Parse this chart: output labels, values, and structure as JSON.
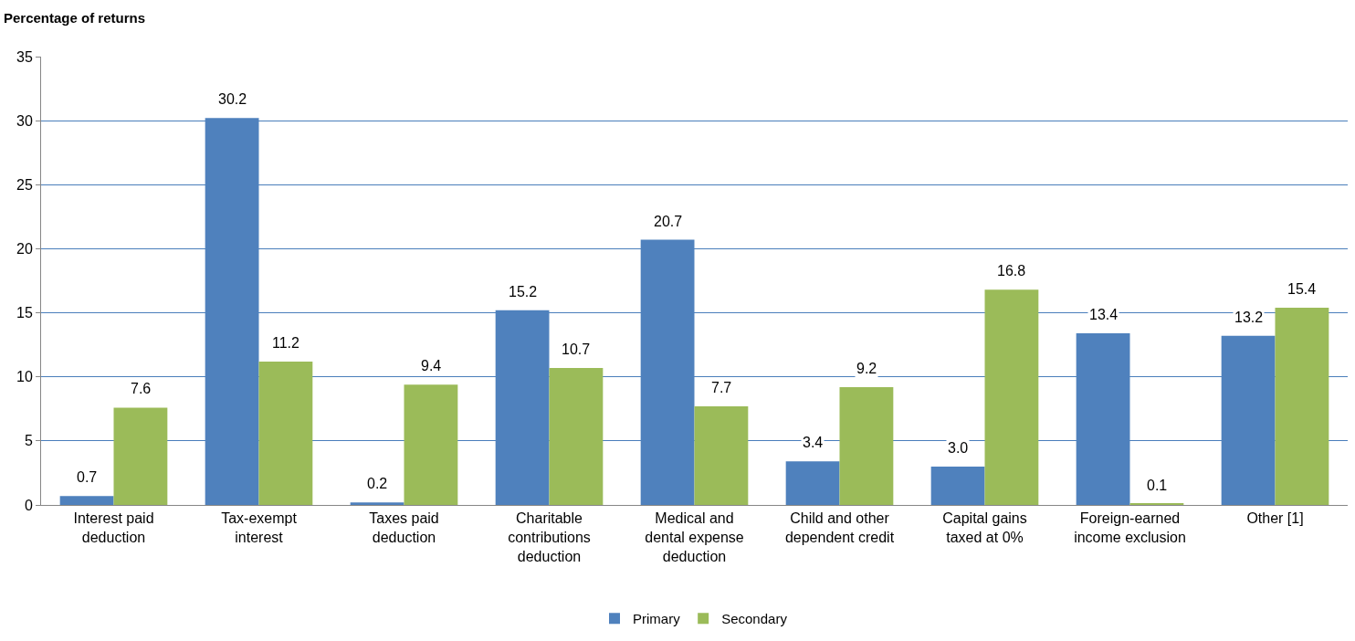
{
  "chart_data": {
    "type": "bar",
    "ylabel": "Percentage of returns",
    "categories": [
      "Interest paid deduction",
      "Tax-exempt interest",
      "Taxes paid deduction",
      "Charitable contributions deduction",
      "Medical and dental expense deduction",
      "Child and other dependent credit",
      "Capital gains taxed at 0%",
      "Foreign-earned income exclusion",
      "Other [1]"
    ],
    "series": [
      {
        "name": "Primary",
        "color": "#4f81bd",
        "values": [
          0.7,
          30.2,
          0.2,
          15.2,
          20.7,
          3.4,
          3.0,
          13.4,
          13.2
        ],
        "value_labels": [
          "0.7",
          "30.2",
          "0.2",
          "15.2",
          "20.7",
          "3.4",
          "3.0",
          "13.4",
          "13.2"
        ]
      },
      {
        "name": "Secondary",
        "color": "#9bbb59",
        "values": [
          7.6,
          11.2,
          9.4,
          10.7,
          7.7,
          9.2,
          16.8,
          0.1,
          15.4
        ],
        "value_labels": [
          "7.6",
          "11.2",
          "9.4",
          "10.7",
          "7.7",
          "9.2",
          "16.8",
          "0.1",
          "15.4"
        ]
      }
    ],
    "ylim": [
      0,
      35
    ],
    "yticks": [
      0,
      5,
      10,
      15,
      20,
      25,
      30,
      35
    ],
    "grid": "y",
    "legend": "bottom"
  }
}
